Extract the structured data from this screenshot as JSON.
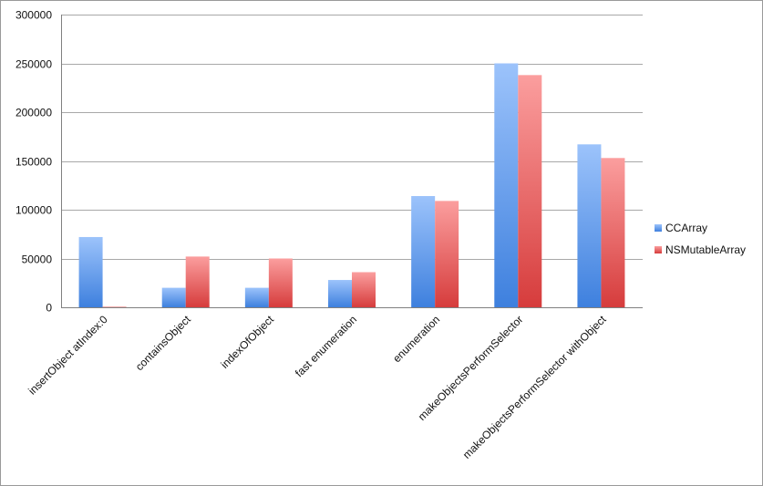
{
  "chart_data": {
    "type": "bar",
    "title": "",
    "xlabel": "",
    "ylabel": "",
    "ylim": [
      0,
      300000
    ],
    "yticks": [
      "0",
      "50000",
      "100000",
      "150000",
      "200000",
      "250000",
      "300000"
    ],
    "grid": true,
    "legend_position": "right",
    "categories": [
      "insertObject atIndex:0",
      "containsObject",
      "indexOfObject",
      "fast enumeration",
      "enumeration",
      "makeObjectsPerformSelector",
      "makeObjectsPerformSelector withObject"
    ],
    "series": [
      {
        "name": "CCArray",
        "color": "#4f8ee6",
        "values": [
          72000,
          20000,
          20000,
          28000,
          114000,
          250000,
          167000
        ]
      },
      {
        "name": "NSMutableArray",
        "color": "#e04a4a",
        "values": [
          500,
          52000,
          50000,
          36000,
          109000,
          238000,
          153000
        ]
      }
    ]
  }
}
